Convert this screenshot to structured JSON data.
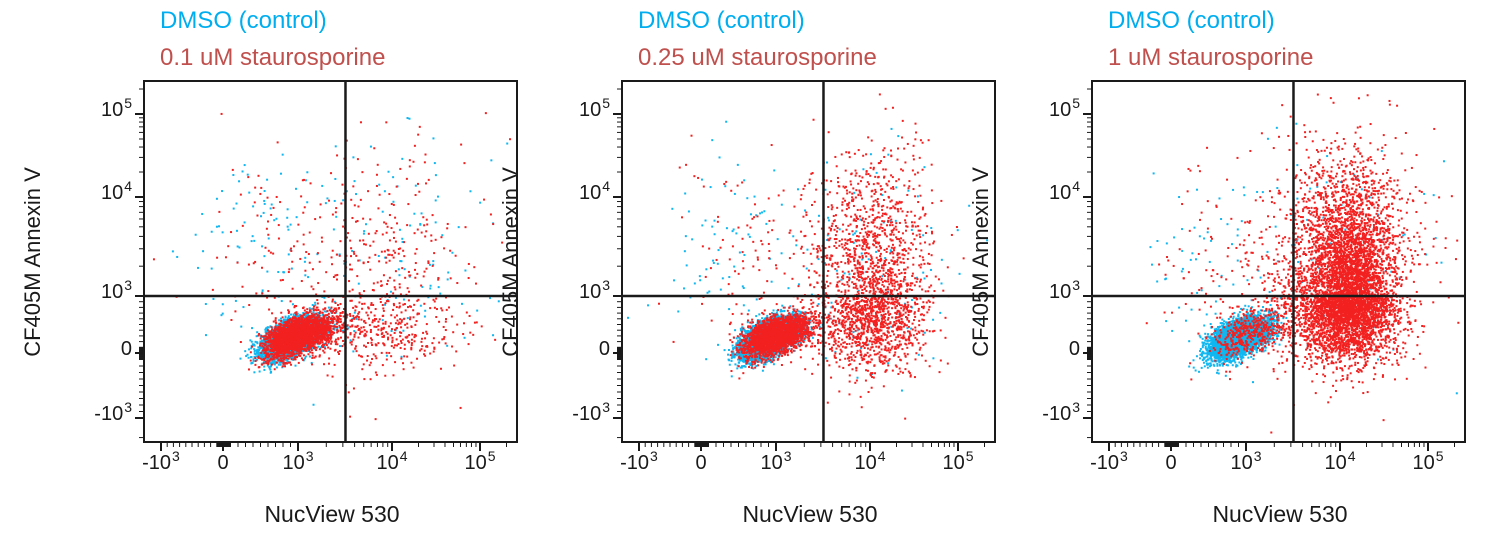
{
  "page": {
    "background": "#ffffff",
    "text_color": "#1a1a1a",
    "frame_color": "#1a1a1a"
  },
  "chart_data": {
    "type": "scatter",
    "variant": "flow-cytometry-dot-plot",
    "xlabel": "NucView 530",
    "ylabel": "CF405M Annexin V",
    "axis_scale": "biexponential: quasi-linear between -1000 and 1000, logarithmic decades above",
    "x_ticks": [
      -1000,
      0,
      1000,
      10000,
      100000
    ],
    "y_ticks": [
      -1000,
      0,
      1000,
      10000,
      100000
    ],
    "minor_ticks": "log-style 1-9 mantissa ticks per decade, mirrored into the compressed linear region",
    "x_range": [
      -1270,
      260000
    ],
    "y_range": [
      -1370,
      250000
    ],
    "quadrant_gate": {
      "x": 3200,
      "y": 1000
    },
    "grid": false,
    "legend_position": "title-lines-above-each-panel",
    "series_legend": [
      {
        "id": "control",
        "label": "DMSO (control)",
        "title_color": "#00AEEF",
        "dot_color": "#10B7F0"
      },
      {
        "id": "treated",
        "label": "staurosporine",
        "title_color": "#C0504D",
        "dot_color": "#F22120"
      }
    ],
    "panels": [
      {
        "title_line1": "DMSO (control)",
        "title_line2": "0.1 uM staurosporine",
        "populations": [
          {
            "series": "control",
            "n": 6500,
            "x": 890,
            "y": 260,
            "sx": 0.17,
            "sy": 0.16,
            "rho": 0.55
          },
          {
            "series": "control",
            "n": 130,
            "x": 10000,
            "y": 1600,
            "sx": 0.6,
            "sy": 0.7,
            "rho": 0.0
          },
          {
            "series": "control",
            "n": 80,
            "x": 400,
            "y": 2600,
            "sx": 0.45,
            "sy": 0.55,
            "rho": 0.0
          },
          {
            "series": "treated",
            "n": 2600,
            "x": 980,
            "y": 300,
            "sx": 0.2,
            "sy": 0.18,
            "rho": 0.5
          },
          {
            "series": "treated",
            "n": 420,
            "x": 7000,
            "y": 1400,
            "sx": 0.5,
            "sy": 0.72,
            "rho": 0.15
          },
          {
            "series": "treated",
            "n": 250,
            "x": 8000,
            "y": 300,
            "sx": 0.45,
            "sy": 0.28,
            "rho": 0.0
          },
          {
            "series": "treated",
            "n": 60,
            "x": 500,
            "y": 3200,
            "sx": 0.45,
            "sy": 0.6,
            "rho": 0.0
          }
        ]
      },
      {
        "title_line1": "DMSO (control)",
        "title_line2": "0.25 uM staurosporine",
        "populations": [
          {
            "series": "control",
            "n": 6500,
            "x": 890,
            "y": 260,
            "sx": 0.17,
            "sy": 0.16,
            "rho": 0.55
          },
          {
            "series": "control",
            "n": 120,
            "x": 10000,
            "y": 1600,
            "sx": 0.6,
            "sy": 0.7,
            "rho": 0.0
          },
          {
            "series": "control",
            "n": 70,
            "x": 400,
            "y": 2600,
            "sx": 0.45,
            "sy": 0.55,
            "rho": 0.0
          },
          {
            "series": "treated",
            "n": 2300,
            "x": 980,
            "y": 300,
            "sx": 0.2,
            "sy": 0.18,
            "rho": 0.5
          },
          {
            "series": "treated",
            "n": 1500,
            "x": 11000,
            "y": 900,
            "sx": 0.3,
            "sy": 0.62,
            "rho": 0.05
          },
          {
            "series": "treated",
            "n": 380,
            "x": 9000,
            "y": 5000,
            "sx": 0.42,
            "sy": 0.5,
            "rho": 0.1
          },
          {
            "series": "treated",
            "n": 90,
            "x": 600,
            "y": 2600,
            "sx": 0.5,
            "sy": 0.55,
            "rho": 0.0
          },
          {
            "series": "treated",
            "n": 170,
            "x": 9000,
            "y": 260,
            "sx": 0.4,
            "sy": 0.28,
            "rho": 0.0
          }
        ]
      },
      {
        "title_line1": "DMSO (control)",
        "title_line2": "1 uM staurosporine",
        "populations": [
          {
            "series": "control",
            "n": 6500,
            "x": 890,
            "y": 260,
            "sx": 0.17,
            "sy": 0.16,
            "rho": 0.55
          },
          {
            "series": "control",
            "n": 100,
            "x": 10000,
            "y": 1600,
            "sx": 0.6,
            "sy": 0.7,
            "rho": 0.0
          },
          {
            "series": "control",
            "n": 60,
            "x": 400,
            "y": 2600,
            "sx": 0.45,
            "sy": 0.55,
            "rho": 0.0
          },
          {
            "series": "treated",
            "n": 430,
            "x": 1050,
            "y": 330,
            "sx": 0.24,
            "sy": 0.22,
            "rho": 0.4
          },
          {
            "series": "treated",
            "n": 4200,
            "x": 13000,
            "y": 1100,
            "sx": 0.27,
            "sy": 0.5,
            "rho": 0.03
          },
          {
            "series": "treated",
            "n": 1300,
            "x": 9500,
            "y": 2200,
            "sx": 0.45,
            "sy": 0.7,
            "rho": 0.1
          },
          {
            "series": "treated",
            "n": 320,
            "x": 12000,
            "y": 200,
            "sx": 0.3,
            "sy": 0.26,
            "rho": 0.0
          },
          {
            "series": "treated",
            "n": 80,
            "x": 500,
            "y": 2600,
            "sx": 0.5,
            "sy": 0.55,
            "rho": 0.0
          }
        ]
      }
    ]
  }
}
